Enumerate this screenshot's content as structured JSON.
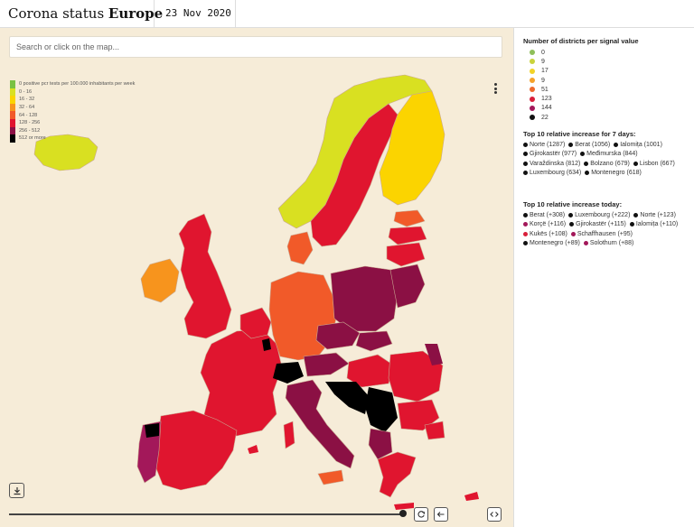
{
  "header": {
    "title_main": "Corona status ",
    "title_bold": "Europe",
    "date": "23 Nov 2020"
  },
  "search": {
    "placeholder": "Search or click on the map..."
  },
  "legend": {
    "items": [
      {
        "label": "0 positive pcr tests per 100.000 inhabitants per week",
        "color": "#7ac143"
      },
      {
        "label": "0 - 16",
        "color": "#d9e021"
      },
      {
        "label": "16 - 32",
        "color": "#fbd400"
      },
      {
        "label": "32 - 64",
        "color": "#f7941d"
      },
      {
        "label": "64 - 128",
        "color": "#f15a29"
      },
      {
        "label": "128 - 256",
        "color": "#e0152f"
      },
      {
        "label": "256 - 512",
        "color": "#8b1044"
      },
      {
        "label": "512 or more",
        "color": "#000000"
      }
    ]
  },
  "panel": {
    "signal_heading": "Number of districts per signal value",
    "signal_values": [
      {
        "value": "0",
        "color": "#8fbf5a"
      },
      {
        "value": "9",
        "color": "#c9d33c"
      },
      {
        "value": "17",
        "color": "#f2d327"
      },
      {
        "value": "9",
        "color": "#f5a22a"
      },
      {
        "value": "51",
        "color": "#ee6a2c"
      },
      {
        "value": "123",
        "color": "#d91f3a"
      },
      {
        "value": "144",
        "color": "#a3185a"
      },
      {
        "value": "22",
        "color": "#111111"
      }
    ],
    "week_heading": "Top 10 relative increase for 7 days:",
    "week_items": [
      {
        "label": "Norte (1287)",
        "color": "#111111"
      },
      {
        "label": "Berat (1056)",
        "color": "#111111"
      },
      {
        "label": "Ialomița (1001)",
        "color": "#111111"
      },
      {
        "label": "Gjirokastër (977)",
        "color": "#111111"
      },
      {
        "label": "Međimurska (844)",
        "color": "#111111"
      },
      {
        "label": "Varaždinska (812)",
        "color": "#111111"
      },
      {
        "label": "Bolzano (679)",
        "color": "#111111"
      },
      {
        "label": "Lisbon (667)",
        "color": "#111111"
      },
      {
        "label": "Luxembourg (634)",
        "color": "#111111"
      },
      {
        "label": "Montenegro (618)",
        "color": "#111111"
      }
    ],
    "today_heading": "Top 10 relative increase today:",
    "today_items": [
      {
        "label": "Berat (+308)",
        "color": "#111111"
      },
      {
        "label": "Luxembourg (+222)",
        "color": "#111111"
      },
      {
        "label": "Norte (+123)",
        "color": "#111111"
      },
      {
        "label": "Korçë (+116)",
        "color": "#a3185a"
      },
      {
        "label": "Gjirokastër (+115)",
        "color": "#111111"
      },
      {
        "label": "Ialomița (+110)",
        "color": "#111111"
      },
      {
        "label": "Kukës (+108)",
        "color": "#d91f3a"
      },
      {
        "label": "Schaffhausen (+95)",
        "color": "#a3185a"
      },
      {
        "label": "Montenegro (+89)",
        "color": "#111111"
      },
      {
        "label": "Solothurn (+88)",
        "color": "#a3185a"
      }
    ]
  },
  "map": {
    "colors": {
      "sea": "#f6ecd8",
      "green": "#7ac143",
      "lime": "#d9e021",
      "yellow": "#fbd400",
      "orange": "#f7941d",
      "red_orange": "#f15a29",
      "red": "#e0152f",
      "dark_red": "#8b1044",
      "black": "#000000",
      "border": "#c9a890"
    }
  }
}
